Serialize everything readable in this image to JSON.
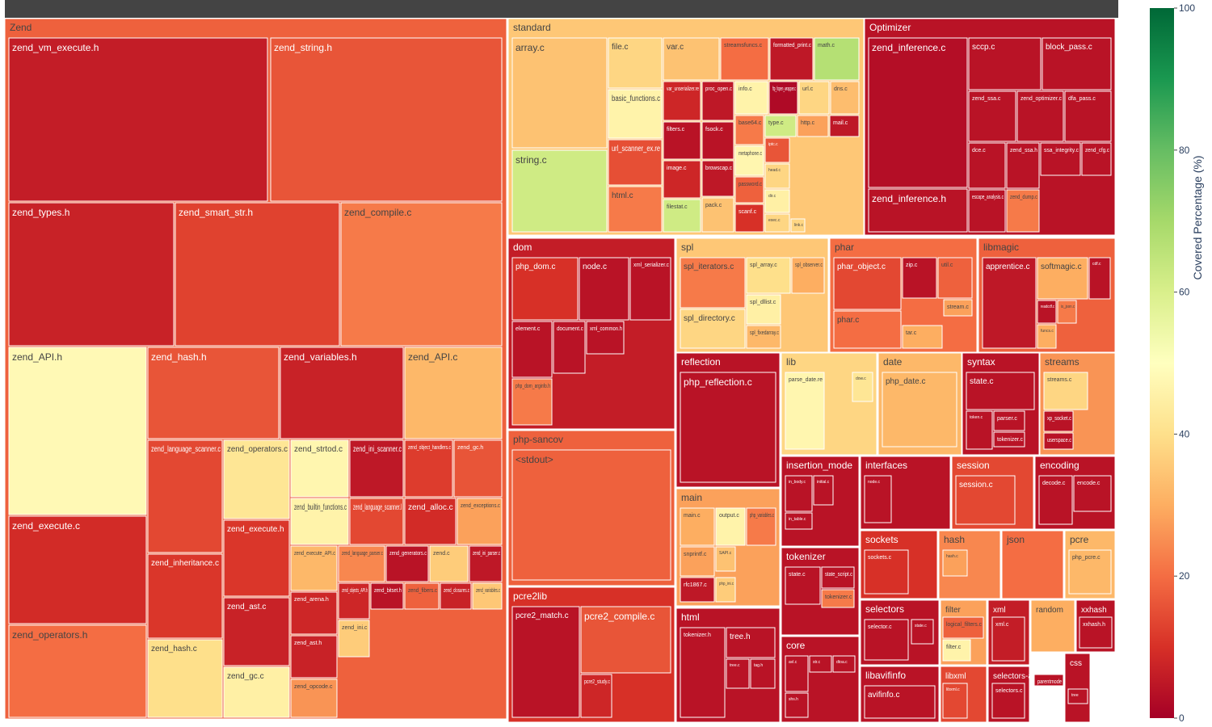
{
  "chart_data": {
    "type": "treemap",
    "title": "",
    "root_label": "",
    "colorbar": {
      "title": "Covered Percentage (%)",
      "min": 0,
      "max": 100,
      "ticks": [
        "0",
        "20",
        "40",
        "60",
        "80",
        "100"
      ],
      "colorscale": [
        "#a50026",
        "#d73027",
        "#f46d43",
        "#fdae61",
        "#fee08b",
        "#ffffbf",
        "#d9ef8b",
        "#a6d96a",
        "#66bd63",
        "#1a9850",
        "#006837"
      ]
    },
    "groups": [
      {
        "name": "Zend",
        "coverage": 18,
        "files": [
          {
            "name": "zend_vm_execute.h",
            "coverage": 6
          },
          {
            "name": "zend_string.h",
            "coverage": 16
          },
          {
            "name": "zend_types.h",
            "coverage": 7
          },
          {
            "name": "zend_smart_str.h",
            "coverage": 13
          },
          {
            "name": "zend_compile.c",
            "coverage": 22
          },
          {
            "name": "zend_API.h",
            "coverage": 48
          },
          {
            "name": "zend_hash.h",
            "coverage": 16
          },
          {
            "name": "zend_variables.h",
            "coverage": 7
          },
          {
            "name": "zend_API.c",
            "coverage": 32
          },
          {
            "name": "zend_execute.c",
            "coverage": 9
          },
          {
            "name": "zend_operators.h",
            "coverage": 20
          },
          {
            "name": "zend_language_scanner.c",
            "coverage": 14
          },
          {
            "name": "zend_operators.c",
            "coverage": 42
          },
          {
            "name": "zend_strtod.c",
            "coverage": 47
          },
          {
            "name": "zend_ini_scanner.c",
            "coverage": 5
          },
          {
            "name": "zend_object_handlers.c",
            "coverage": 12
          },
          {
            "name": "zend_gc.h",
            "coverage": 16
          },
          {
            "name": "zend_builtin_functions.c",
            "coverage": 46
          },
          {
            "name": "zend_language_scanner.l",
            "coverage": 14
          },
          {
            "name": "zend_alloc.c",
            "coverage": 9
          },
          {
            "name": "zend_exceptions.c",
            "coverage": 28
          },
          {
            "name": "zend_inheritance.c",
            "coverage": 11
          },
          {
            "name": "zend_execute.h",
            "coverage": 11
          },
          {
            "name": "zend_execute_API.c",
            "coverage": 32
          },
          {
            "name": "zend_language_parser.c",
            "coverage": 24
          },
          {
            "name": "zend_generators.c",
            "coverage": 4
          },
          {
            "name": "zend.c",
            "coverage": 36
          },
          {
            "name": "zend_ini_parser.c",
            "coverage": 5
          },
          {
            "name": "zend_ast.c",
            "coverage": 7
          },
          {
            "name": "zend_arena.h",
            "coverage": 8
          },
          {
            "name": "zend_objects_API.h",
            "coverage": 8
          },
          {
            "name": "zend_bitset.h",
            "coverage": 4
          },
          {
            "name": "zend_fibers.c",
            "coverage": 18
          },
          {
            "name": "zend_closures.c",
            "coverage": 7
          },
          {
            "name": "zend_variables.c",
            "coverage": 35
          },
          {
            "name": "zend_hash.c",
            "coverage": 40
          },
          {
            "name": "zend_ast.h",
            "coverage": 7
          },
          {
            "name": "zend_ini.c",
            "coverage": 36
          },
          {
            "name": "zend_gc.c",
            "coverage": 45
          },
          {
            "name": "zend_opcode.c",
            "coverage": 26
          }
        ]
      },
      {
        "name": "standard",
        "coverage": 35,
        "files": [
          {
            "name": "array.c",
            "coverage": 34
          },
          {
            "name": "file.c",
            "coverage": 38
          },
          {
            "name": "var.c",
            "coverage": 34
          },
          {
            "name": "streamsfuncs.c",
            "coverage": 20
          },
          {
            "name": "formatted_print.c",
            "coverage": 5
          },
          {
            "name": "math.c",
            "coverage": 67
          },
          {
            "name": "string.c",
            "coverage": 62
          },
          {
            "name": "basic_functions.c",
            "coverage": 46
          },
          {
            "name": "var_unserializer.re",
            "coverage": 8
          },
          {
            "name": "proc_open.c",
            "coverage": 5
          },
          {
            "name": "info.c",
            "coverage": 46
          },
          {
            "name": "ftp_fopen_wrapper.c",
            "coverage": 2
          },
          {
            "name": "url.c",
            "coverage": 38
          },
          {
            "name": "dns.c",
            "coverage": 33
          },
          {
            "name": "url_scanner_ex.re",
            "coverage": 15
          },
          {
            "name": "filters.c",
            "coverage": 4
          },
          {
            "name": "fsock.c",
            "coverage": 4
          },
          {
            "name": "base64.c",
            "coverage": 22
          },
          {
            "name": "type.c",
            "coverage": 62
          },
          {
            "name": "http.c",
            "coverage": 28
          },
          {
            "name": "mail.c",
            "coverage": 5
          },
          {
            "name": "image.c",
            "coverage": 8
          },
          {
            "name": "browscap.c",
            "coverage": 5
          },
          {
            "name": "metaphone.c",
            "coverage": 47
          },
          {
            "name": "iptc.c",
            "coverage": 16
          },
          {
            "name": "html.c",
            "coverage": 22
          },
          {
            "name": "filestat.c",
            "coverage": 62
          },
          {
            "name": "pack.c",
            "coverage": 34
          },
          {
            "name": "password.c",
            "coverage": 18
          },
          {
            "name": "head.c",
            "coverage": 38
          },
          {
            "name": "dir.c",
            "coverage": 45
          },
          {
            "name": "scanf.c",
            "coverage": 10
          },
          {
            "name": "exec.c",
            "coverage": 38
          },
          {
            "name": "link.c",
            "coverage": 38
          }
        ]
      },
      {
        "name": "Optimizer",
        "coverage": 4,
        "files": [
          {
            "name": "zend_inference.c",
            "coverage": 3
          },
          {
            "name": "sccp.c",
            "coverage": 4
          },
          {
            "name": "block_pass.c",
            "coverage": 4
          },
          {
            "name": "zend_ssa.c",
            "coverage": 4
          },
          {
            "name": "zend_optimizer.c",
            "coverage": 4
          },
          {
            "name": "dfa_pass.c",
            "coverage": 4
          },
          {
            "name": "dce.c",
            "coverage": 4
          },
          {
            "name": "zend_ssa.h",
            "coverage": 4
          },
          {
            "name": "ssa_integrity.c",
            "coverage": 4
          },
          {
            "name": "zend_cfg.c",
            "coverage": 4
          },
          {
            "name": "zend_inference.h",
            "coverage": 4
          },
          {
            "name": "escape_analysis.c",
            "coverage": 4
          },
          {
            "name": "zend_dump.c",
            "coverage": 22
          }
        ]
      },
      {
        "name": "dom",
        "coverage": 6,
        "files": [
          {
            "name": "php_dom.c",
            "coverage": 10
          },
          {
            "name": "node.c",
            "coverage": 4
          },
          {
            "name": "xml_serializer.c",
            "coverage": 4
          },
          {
            "name": "element.c",
            "coverage": 4
          },
          {
            "name": "document.c",
            "coverage": 4
          },
          {
            "name": "xml_common.h",
            "coverage": 4
          },
          {
            "name": "php_dom_arginfo.h",
            "coverage": 22
          }
        ]
      },
      {
        "name": "spl",
        "coverage": 35,
        "files": [
          {
            "name": "spl_iterators.c",
            "coverage": 22
          },
          {
            "name": "spl_array.c",
            "coverage": 40
          },
          {
            "name": "spl_observer.c",
            "coverage": 30
          },
          {
            "name": "spl_directory.c",
            "coverage": 38
          },
          {
            "name": "spl_dllist.c",
            "coverage": 45
          },
          {
            "name": "spl_fixedarray.c",
            "coverage": 32
          }
        ]
      },
      {
        "name": "phar",
        "coverage": 20,
        "files": [
          {
            "name": "phar_object.c",
            "coverage": 14
          },
          {
            "name": "zip.c",
            "coverage": 4
          },
          {
            "name": "util.c",
            "coverage": 18
          },
          {
            "name": "phar.c",
            "coverage": 20
          },
          {
            "name": "tar.c",
            "coverage": 30
          },
          {
            "name": "stream.c",
            "coverage": 28
          }
        ]
      },
      {
        "name": "libmagic",
        "coverage": 18,
        "files": [
          {
            "name": "apprentice.c",
            "coverage": 5
          },
          {
            "name": "softmagic.c",
            "coverage": 30
          },
          {
            "name": "cdf.c",
            "coverage": 4
          },
          {
            "name": "readcdf.c",
            "coverage": 4
          },
          {
            "name": "is_json.c",
            "coverage": 22
          },
          {
            "name": "funcs.c",
            "coverage": 30
          }
        ]
      },
      {
        "name": "reflection",
        "coverage": 4,
        "files": [
          {
            "name": "php_reflection.c",
            "coverage": 4
          }
        ]
      },
      {
        "name": "lib",
        "coverage": 38,
        "files": [
          {
            "name": "parse_date.re",
            "coverage": 47
          },
          {
            "name": "dow.c",
            "coverage": 42
          }
        ]
      },
      {
        "name": "date",
        "coverage": 32,
        "files": [
          {
            "name": "php_date.c",
            "coverage": 32
          }
        ]
      },
      {
        "name": "syntax",
        "coverage": 4,
        "files": [
          {
            "name": "state.c",
            "coverage": 4
          },
          {
            "name": "token.c",
            "coverage": 4
          },
          {
            "name": "parser.c",
            "coverage": 4
          },
          {
            "name": "tokenizer.c",
            "coverage": 4
          }
        ]
      },
      {
        "name": "streams",
        "coverage": 26,
        "files": [
          {
            "name": "streams.c",
            "coverage": 38
          },
          {
            "name": "xp_socket.c",
            "coverage": 4
          },
          {
            "name": "userspace.c",
            "coverage": 4
          }
        ]
      },
      {
        "name": "php-sancov",
        "coverage": 18,
        "files": [
          {
            "name": "<stdout>",
            "coverage": 18
          }
        ]
      },
      {
        "name": "pcre2lib",
        "coverage": 10,
        "files": [
          {
            "name": "pcre2_match.c",
            "coverage": 4
          },
          {
            "name": "pcre2_compile.c",
            "coverage": 16
          },
          {
            "name": "pcre2_study.c",
            "coverage": 8
          }
        ]
      },
      {
        "name": "main",
        "coverage": 28,
        "files": [
          {
            "name": "main.c",
            "coverage": 30
          },
          {
            "name": "output.c",
            "coverage": 46
          },
          {
            "name": "php_variables.c",
            "coverage": 22
          },
          {
            "name": "snprintf.c",
            "coverage": 28
          },
          {
            "name": "SAPI.c",
            "coverage": 34
          },
          {
            "name": "rfc1867.c",
            "coverage": 5
          },
          {
            "name": "php_ini.c",
            "coverage": 36
          }
        ]
      },
      {
        "name": "html",
        "coverage": 4,
        "files": [
          {
            "name": "tokenizer.h",
            "coverage": 4
          },
          {
            "name": "tree.h",
            "coverage": 4
          },
          {
            "name": "tree.c",
            "coverage": 4
          },
          {
            "name": "tag.h",
            "coverage": 4
          }
        ]
      },
      {
        "name": "insertion_mode",
        "coverage": 4,
        "files": [
          {
            "name": "in_body.c",
            "coverage": 4
          },
          {
            "name": "initial.c",
            "coverage": 4
          },
          {
            "name": "in_table.c",
            "coverage": 4
          }
        ]
      },
      {
        "name": "tokenizer",
        "coverage": 4,
        "files": [
          {
            "name": "state.c",
            "coverage": 4
          },
          {
            "name": "state_script.c",
            "coverage": 4
          },
          {
            "name": "tokenizer.c",
            "coverage": 22
          }
        ]
      },
      {
        "name": "core",
        "coverage": 4,
        "files": [
          {
            "name": "avl.c",
            "coverage": 4
          },
          {
            "name": "str.c",
            "coverage": 4
          },
          {
            "name": "dtoa.c",
            "coverage": 4
          },
          {
            "name": "shs.h",
            "coverage": 4
          }
        ]
      },
      {
        "name": "interfaces",
        "coverage": 4,
        "files": [
          {
            "name": "node.c",
            "coverage": 4
          }
        ]
      },
      {
        "name": "session",
        "coverage": 14,
        "files": [
          {
            "name": "session.c",
            "coverage": 14
          }
        ]
      },
      {
        "name": "encoding",
        "coverage": 4,
        "files": [
          {
            "name": "decode.c",
            "coverage": 4
          },
          {
            "name": "encode.c",
            "coverage": 4
          }
        ]
      },
      {
        "name": "sockets",
        "coverage": 10,
        "files": [
          {
            "name": "sockets.c",
            "coverage": 10
          }
        ]
      },
      {
        "name": "hash",
        "coverage": 24,
        "files": [
          {
            "name": "hash.c",
            "coverage": 28
          }
        ]
      },
      {
        "name": "json",
        "coverage": 20,
        "files": []
      },
      {
        "name": "pcre",
        "coverage": 32,
        "files": [
          {
            "name": "php_pcre.c",
            "coverage": 32
          }
        ]
      },
      {
        "name": "selectors",
        "coverage": 4,
        "files": [
          {
            "name": "selector.c",
            "coverage": 4
          },
          {
            "name": "state.c",
            "coverage": 4
          }
        ]
      },
      {
        "name": "filter",
        "coverage": 28,
        "files": [
          {
            "name": "logical_filters.c",
            "coverage": 18
          },
          {
            "name": "filter.c",
            "coverage": 46
          }
        ]
      },
      {
        "name": "xml",
        "coverage": 6,
        "files": [
          {
            "name": "xml.c",
            "coverage": 6
          }
        ]
      },
      {
        "name": "random",
        "coverage": 30,
        "files": []
      },
      {
        "name": "xxhash",
        "coverage": 4,
        "files": [
          {
            "name": "xxhash.h",
            "coverage": 4
          }
        ]
      },
      {
        "name": "libavifinfo",
        "coverage": 4,
        "files": [
          {
            "name": "avifinfo.c",
            "coverage": 4
          }
        ]
      },
      {
        "name": "libxml",
        "coverage": 14,
        "files": [
          {
            "name": "libxml.c",
            "coverage": 14
          }
        ]
      },
      {
        "name": "selectors-adapted",
        "coverage": 4,
        "files": [
          {
            "name": "selectors.c",
            "coverage": 4
          }
        ]
      },
      {
        "name": "css",
        "coverage": 4,
        "files": [
          {
            "name": "tree",
            "coverage": 4
          },
          {
            "name": "parentmode",
            "coverage": 4
          }
        ]
      }
    ]
  }
}
